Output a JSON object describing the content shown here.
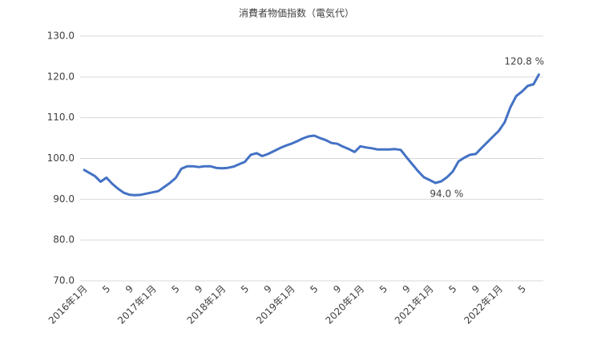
{
  "chart_data": {
    "type": "line",
    "title": "消費者物価指数（電気代）",
    "categories": [
      "2016年1月",
      null,
      null,
      null,
      "5",
      null,
      null,
      null,
      "9",
      null,
      null,
      null,
      "2017年1月",
      null,
      null,
      null,
      "5",
      null,
      null,
      null,
      "9",
      null,
      null,
      null,
      "2018年1月",
      null,
      null,
      null,
      "5",
      null,
      null,
      null,
      "9",
      null,
      null,
      null,
      "2019年1月",
      null,
      null,
      null,
      "5",
      null,
      null,
      null,
      "9",
      null,
      null,
      null,
      "2020年1月",
      null,
      null,
      null,
      "5",
      null,
      null,
      null,
      "9",
      null,
      null,
      null,
      "2021年1月",
      null,
      null,
      null,
      "5",
      null,
      null,
      null,
      "9",
      null,
      null,
      null,
      "2022年1月",
      null,
      null,
      null,
      "5",
      null,
      null,
      null
    ],
    "series": [
      {
        "color": "#4472c4",
        "values": [
          97.3,
          96.5,
          95.7,
          94.3,
          95.3,
          93.8,
          92.6,
          91.6,
          91.1,
          91.0,
          91.1,
          91.4,
          91.7,
          92.0,
          93.0,
          94.0,
          95.2,
          97.5,
          98.1,
          98.1,
          97.9,
          98.1,
          98.1,
          97.7,
          97.6,
          97.7,
          98.0,
          98.6,
          99.2,
          100.9,
          101.3,
          100.6,
          101.1,
          101.8,
          102.5,
          103.1,
          103.6,
          104.2,
          104.9,
          105.4,
          105.6,
          105.0,
          104.5,
          103.8,
          103.6,
          102.9,
          102.3,
          101.6,
          103.0,
          102.7,
          102.5,
          102.2,
          102.2,
          102.2,
          102.3,
          102.1,
          100.3,
          98.6,
          96.9,
          95.4,
          94.7,
          94.0,
          94.4,
          95.4,
          96.8,
          99.3,
          100.2,
          100.9,
          101.1,
          102.6,
          104.0,
          105.4,
          106.8,
          108.9,
          112.6,
          115.3,
          116.4,
          117.8,
          118.2,
          120.8
        ],
        "value_labels": [
          null,
          null,
          null,
          null,
          null,
          null,
          null,
          null,
          null,
          null,
          null,
          null,
          null,
          null,
          null,
          null,
          null,
          null,
          null,
          null,
          null,
          null,
          null,
          null,
          null,
          null,
          null,
          null,
          null,
          null,
          null,
          null,
          null,
          null,
          null,
          null,
          null,
          null,
          null,
          null,
          null,
          null,
          null,
          null,
          null,
          null,
          null,
          null,
          null,
          null,
          null,
          null,
          null,
          null,
          null,
          null,
          null,
          null,
          null,
          null,
          null,
          "94.0 %",
          null,
          null,
          null,
          null,
          null,
          null,
          null,
          null,
          null,
          null,
          null,
          null,
          null,
          null,
          null,
          null,
          null,
          "120.8 %"
        ]
      }
    ],
    "ylim": [
      70,
      130
    ],
    "yticks": [
      {
        "value": 70,
        "label": "70.0"
      },
      {
        "value": 80,
        "label": "80.0"
      },
      {
        "value": 90,
        "label": "90.0"
      },
      {
        "value": 100,
        "label": "100.0"
      },
      {
        "value": 110,
        "label": "110.0"
      },
      {
        "value": 120,
        "label": "120.0"
      },
      {
        "value": 130,
        "label": "130.0"
      }
    ],
    "grid": true
  }
}
